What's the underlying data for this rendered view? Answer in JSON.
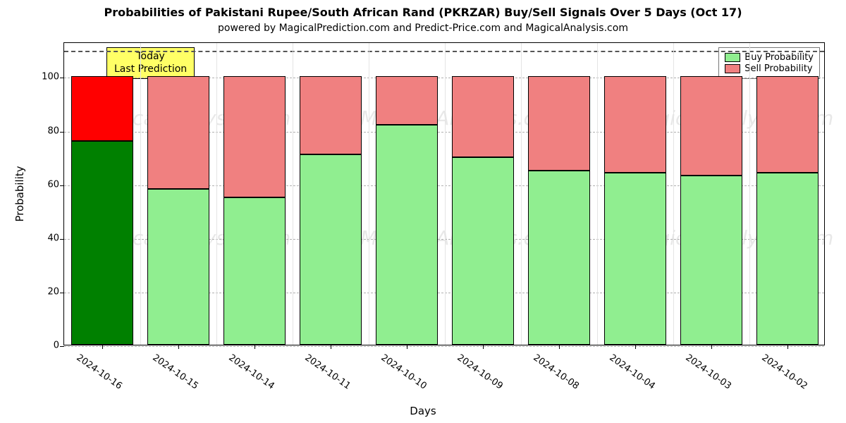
{
  "title": "Probabilities of Pakistani Rupee/South African Rand (PKRZAR) Buy/Sell Signals Over 5 Days (Oct 17)",
  "subtitle": "powered by MagicalPrediction.com and Predict-Price.com and MagicalAnalysis.com",
  "axes": {
    "ylabel": "Probability",
    "xlabel": "Days",
    "ylim_min": 0,
    "ylim_max": 113,
    "yticks": [
      0,
      20,
      40,
      60,
      80,
      100
    ],
    "dash_line_y": 110,
    "grid_color": "#cfcfcf",
    "dash_color": "#555555"
  },
  "chart": {
    "type": "stacked-bar",
    "bar_width_ratio": 0.82,
    "background_color": "#ffffff",
    "border_color": "#000000",
    "categories": [
      "2024-10-16",
      "2024-10-15",
      "2024-10-14",
      "2024-10-11",
      "2024-10-10",
      "2024-10-09",
      "2024-10-08",
      "2024-10-04",
      "2024-10-03",
      "2024-10-02"
    ],
    "buy_values": [
      76,
      58,
      55,
      71,
      82,
      70,
      65,
      64,
      63,
      64
    ],
    "sell_values": [
      24,
      42,
      45,
      29,
      18,
      30,
      35,
      36,
      37,
      36
    ],
    "highlight_index": 0,
    "colors": {
      "buy": "#90ee90",
      "sell": "#f08080",
      "buy_highlight": "#008000",
      "sell_highlight": "#ff0000"
    }
  },
  "annotation": {
    "line1": "Today",
    "line2": "Last Prediction",
    "background": "#ffff66"
  },
  "legend": {
    "buy_label": "Buy Probability",
    "sell_label": "Sell Probability"
  },
  "watermark_text": "MagicalAnalysis.com",
  "title_fontsize": 16,
  "subtitle_fontsize": 14
}
